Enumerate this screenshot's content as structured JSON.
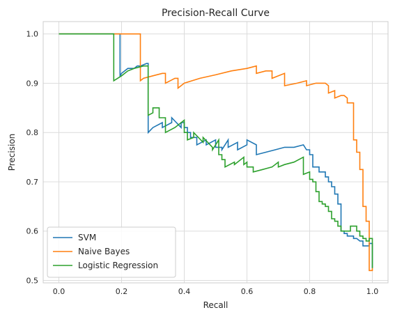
{
  "chart_data": {
    "type": "line",
    "title": "Precision-Recall Curve",
    "xlabel": "Recall",
    "ylabel": "Precision",
    "xlim": [
      -0.05,
      1.05
    ],
    "ylim": [
      0.495,
      1.025
    ],
    "xticks": [
      0.0,
      0.2,
      0.4,
      0.6,
      0.8,
      1.0
    ],
    "xtick_labels": [
      "0.0",
      "0.2",
      "0.4",
      "0.6",
      "0.8",
      "1.0"
    ],
    "yticks": [
      0.5,
      0.6,
      0.7,
      0.8,
      0.9,
      1.0
    ],
    "ytick_labels": [
      "0.5",
      "0.6",
      "0.7",
      "0.8",
      "0.9",
      "1.0"
    ],
    "grid": true,
    "legend": "lower-left",
    "series": [
      {
        "name": "SVM",
        "color": "#1f77b4",
        "x": [
          0.0,
          0.195,
          0.195,
          0.2,
          0.21,
          0.22,
          0.24,
          0.25,
          0.26,
          0.28,
          0.285,
          0.285,
          0.3,
          0.3,
          0.33,
          0.33,
          0.36,
          0.36,
          0.39,
          0.39,
          0.4,
          0.4,
          0.41,
          0.41,
          0.42,
          0.42,
          0.44,
          0.44,
          0.47,
          0.47,
          0.5,
          0.5,
          0.52,
          0.52,
          0.54,
          0.54,
          0.57,
          0.57,
          0.6,
          0.6,
          0.63,
          0.63,
          0.66,
          0.66,
          0.69,
          0.69,
          0.72,
          0.72,
          0.75,
          0.75,
          0.78,
          0.79,
          0.8,
          0.8,
          0.81,
          0.81,
          0.83,
          0.83,
          0.85,
          0.85,
          0.86,
          0.86,
          0.87,
          0.87,
          0.88,
          0.88,
          0.89,
          0.89,
          0.9,
          0.9,
          0.91,
          0.91,
          0.92,
          0.92,
          0.94,
          0.94,
          0.95,
          0.96,
          0.97,
          0.97,
          0.98,
          0.98,
          0.99,
          0.99,
          1.0,
          1.0
        ],
        "y": [
          1.0,
          1.0,
          0.915,
          0.92,
          0.925,
          0.93,
          0.93,
          0.935,
          0.935,
          0.94,
          0.94,
          0.8,
          0.81,
          0.81,
          0.82,
          0.81,
          0.82,
          0.83,
          0.81,
          0.82,
          0.82,
          0.81,
          0.81,
          0.8,
          0.8,
          0.79,
          0.79,
          0.775,
          0.785,
          0.775,
          0.785,
          0.77,
          0.77,
          0.765,
          0.785,
          0.77,
          0.78,
          0.765,
          0.775,
          0.785,
          0.775,
          0.755,
          0.76,
          0.76,
          0.765,
          0.765,
          0.77,
          0.77,
          0.77,
          0.77,
          0.775,
          0.765,
          0.765,
          0.755,
          0.755,
          0.73,
          0.73,
          0.72,
          0.72,
          0.71,
          0.71,
          0.7,
          0.7,
          0.69,
          0.69,
          0.675,
          0.675,
          0.655,
          0.655,
          0.6,
          0.6,
          0.595,
          0.595,
          0.59,
          0.59,
          0.585,
          0.585,
          0.58,
          0.58,
          0.57,
          0.57,
          0.57,
          0.57,
          0.575,
          0.575,
          0.525
        ]
      },
      {
        "name": "Naive Bayes",
        "color": "#ff7f0e",
        "x": [
          0.0,
          0.26,
          0.26,
          0.27,
          0.3,
          0.33,
          0.34,
          0.34,
          0.37,
          0.38,
          0.38,
          0.4,
          0.45,
          0.5,
          0.55,
          0.6,
          0.63,
          0.63,
          0.66,
          0.68,
          0.68,
          0.72,
          0.72,
          0.76,
          0.79,
          0.79,
          0.82,
          0.85,
          0.86,
          0.86,
          0.88,
          0.88,
          0.9,
          0.91,
          0.92,
          0.92,
          0.93,
          0.94,
          0.94,
          0.95,
          0.95,
          0.96,
          0.96,
          0.97,
          0.97,
          0.98,
          0.98,
          0.99,
          0.99,
          1.0,
          1.0
        ],
        "y": [
          1.0,
          1.0,
          0.905,
          0.91,
          0.915,
          0.92,
          0.92,
          0.9,
          0.91,
          0.91,
          0.89,
          0.9,
          0.91,
          0.917,
          0.925,
          0.93,
          0.935,
          0.92,
          0.925,
          0.925,
          0.91,
          0.92,
          0.895,
          0.9,
          0.905,
          0.895,
          0.9,
          0.9,
          0.895,
          0.88,
          0.885,
          0.87,
          0.875,
          0.875,
          0.87,
          0.86,
          0.86,
          0.86,
          0.785,
          0.785,
          0.76,
          0.76,
          0.725,
          0.725,
          0.65,
          0.65,
          0.62,
          0.62,
          0.52,
          0.52,
          0.525
        ]
      },
      {
        "name": "Logistic Regression",
        "color": "#2ca02c",
        "x": [
          0.0,
          0.175,
          0.175,
          0.2,
          0.22,
          0.24,
          0.27,
          0.285,
          0.285,
          0.3,
          0.3,
          0.32,
          0.32,
          0.34,
          0.34,
          0.37,
          0.4,
          0.4,
          0.41,
          0.41,
          0.43,
          0.43,
          0.46,
          0.46,
          0.49,
          0.49,
          0.51,
          0.51,
          0.52,
          0.52,
          0.53,
          0.53,
          0.56,
          0.56,
          0.59,
          0.59,
          0.6,
          0.6,
          0.62,
          0.62,
          0.65,
          0.65,
          0.68,
          0.68,
          0.7,
          0.7,
          0.72,
          0.72,
          0.75,
          0.78,
          0.78,
          0.8,
          0.8,
          0.81,
          0.81,
          0.82,
          0.82,
          0.83,
          0.83,
          0.84,
          0.84,
          0.85,
          0.85,
          0.86,
          0.86,
          0.87,
          0.87,
          0.88,
          0.88,
          0.89,
          0.89,
          0.9,
          0.9,
          0.91,
          0.91,
          0.93,
          0.93,
          0.95,
          0.95,
          0.96,
          0.96,
          0.97,
          0.97,
          0.98,
          0.98,
          0.99,
          0.99,
          1.0,
          1.0
        ],
        "y": [
          1.0,
          1.0,
          0.905,
          0.915,
          0.925,
          0.93,
          0.935,
          0.935,
          0.835,
          0.84,
          0.85,
          0.85,
          0.83,
          0.83,
          0.8,
          0.81,
          0.825,
          0.8,
          0.8,
          0.785,
          0.79,
          0.8,
          0.78,
          0.79,
          0.77,
          0.765,
          0.785,
          0.755,
          0.755,
          0.745,
          0.745,
          0.73,
          0.74,
          0.735,
          0.75,
          0.735,
          0.74,
          0.73,
          0.73,
          0.72,
          0.725,
          0.725,
          0.73,
          0.73,
          0.74,
          0.73,
          0.735,
          0.735,
          0.74,
          0.75,
          0.715,
          0.72,
          0.705,
          0.705,
          0.7,
          0.7,
          0.68,
          0.68,
          0.66,
          0.66,
          0.655,
          0.655,
          0.65,
          0.65,
          0.64,
          0.64,
          0.625,
          0.625,
          0.62,
          0.62,
          0.61,
          0.61,
          0.6,
          0.6,
          0.6,
          0.6,
          0.61,
          0.61,
          0.6,
          0.6,
          0.59,
          0.59,
          0.585,
          0.585,
          0.58,
          0.58,
          0.585,
          0.585,
          0.525
        ]
      }
    ]
  }
}
